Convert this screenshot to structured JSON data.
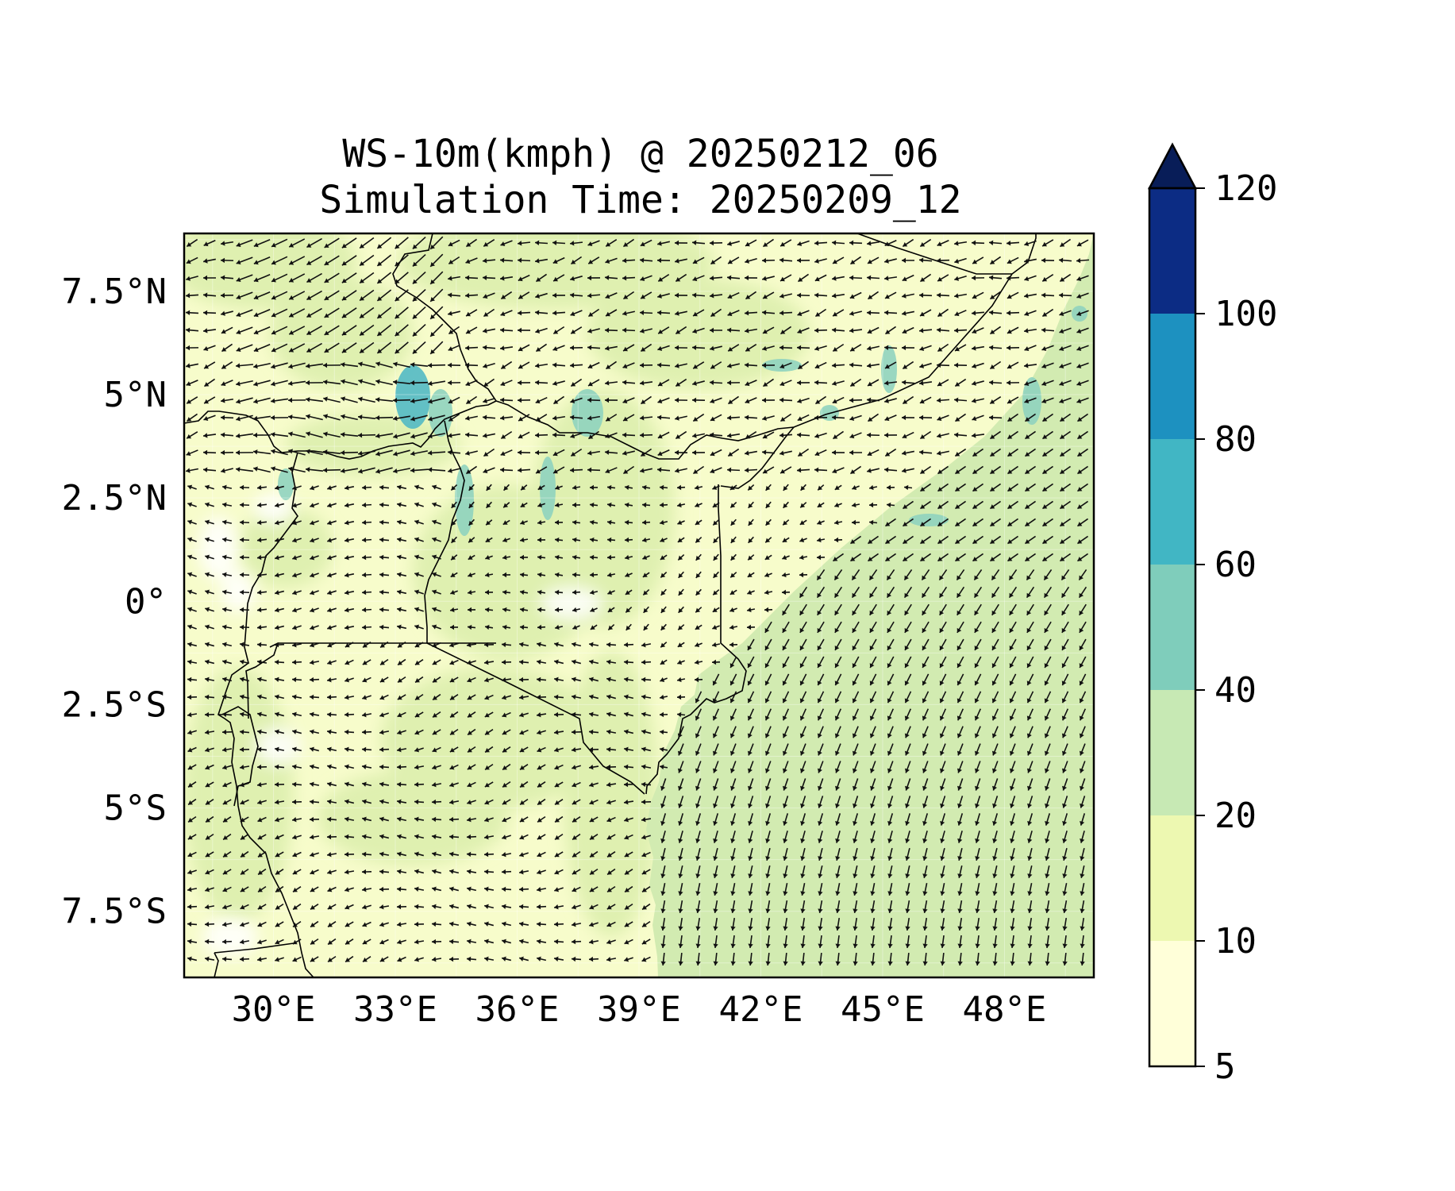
{
  "title": {
    "line1": "WS-10m(kmph) @ 20250212_06",
    "line2": "Simulation Time: 20250209_12"
  },
  "map": {
    "lon_range": [
      27.8,
      50.2
    ],
    "lat_range": [
      -9.1,
      8.9
    ],
    "lon_ticks": [
      "30°E",
      "33°E",
      "36°E",
      "39°E",
      "42°E",
      "45°E",
      "48°E"
    ],
    "lat_ticks": [
      "7.5°N",
      "5°N",
      "2.5°N",
      "0°",
      "2.5°S",
      "5°S",
      "7.5°S"
    ],
    "field": "10 m wind speed (kmph) with wind vectors"
  },
  "colorbar": {
    "ticks": [
      "5",
      "10",
      "20",
      "40",
      "60",
      "80",
      "100",
      "120"
    ],
    "colors": [
      "#ffffd9",
      "#edf8b1",
      "#c7e9b4",
      "#7fcdbb",
      "#41b6c4",
      "#1d91c0",
      "#225ea8",
      "#0c2c84"
    ],
    "extend_color": "#081d58",
    "extend": "max"
  },
  "palette": {
    "land_low": "#f7fccb",
    "land_mid": "#eaf6b8",
    "ocean": "#d2ebb1",
    "strong": "#8fd3bf",
    "stronger": "#52b9c4",
    "arrow": "#111111",
    "border": "#000000"
  }
}
